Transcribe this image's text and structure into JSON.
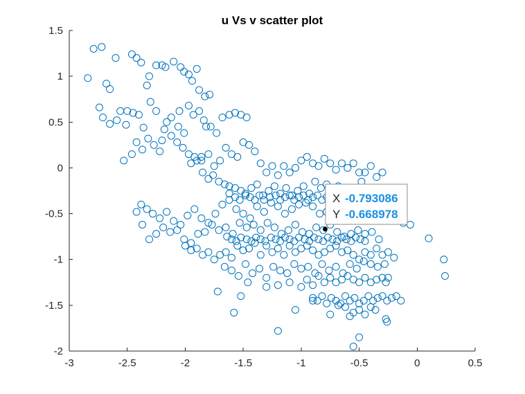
{
  "chart_data": {
    "type": "scatter",
    "title": "u Vs v scatter plot",
    "xlabel": "",
    "ylabel": "",
    "xlim": [
      -3,
      0.5
    ],
    "ylim": [
      -2,
      1.5
    ],
    "xticks": [
      -3,
      -2.5,
      -2,
      -1.5,
      -1,
      -0.5,
      0,
      0.5
    ],
    "xtick_labels": [
      "-3",
      "-2.5",
      "-2",
      "-1.5",
      "-1",
      "-0.5",
      "0",
      "0.5"
    ],
    "yticks": [
      -2,
      -1.5,
      -1,
      -0.5,
      0,
      0.5,
      1,
      1.5
    ],
    "ytick_labels": [
      "-2",
      "-1.5",
      "-1",
      "-0.5",
      "0",
      "0.5",
      "1",
      "1.5"
    ],
    "grid": false,
    "marker": "open-circle",
    "marker_color": "#0072BD",
    "datatip": {
      "x": -0.793086,
      "y": -0.668978,
      "x_label": "X",
      "y_label": "Y",
      "x_text": "-0.793086",
      "y_text": "-0.668978",
      "value_color": "#1a8fe3"
    },
    "series": [
      {
        "x": [
          -2.84,
          -2.79,
          -2.72,
          -2.68,
          -2.65,
          -2.6,
          -2.56,
          -2.51,
          -2.46,
          -2.42,
          -2.38,
          -2.33,
          -2.31,
          -2.25,
          -2.2,
          -2.17,
          -2.1,
          -2.04,
          -2.01,
          -1.97,
          -1.9,
          -2.74,
          -2.71,
          -2.65,
          -2.59,
          -2.53,
          -2.5,
          -2.45,
          -2.4,
          -2.36,
          -2.3,
          -2.25,
          -2.2,
          -2.16,
          -2.12,
          -2.06,
          -2.01,
          -1.94,
          -1.88,
          -1.83,
          -1.79,
          -2.46,
          -2.42,
          -2.37,
          -2.32,
          -2.27,
          -2.22,
          -2.18,
          -2.12,
          -2.07,
          -2.02,
          -1.97,
          -1.92,
          -1.86,
          -1.82,
          -2.05,
          -1.97,
          -1.93,
          -1.88,
          -1.84,
          -1.78,
          -1.73,
          -1.68,
          -1.62,
          -1.57,
          -1.52,
          -1.47,
          -1.95,
          -1.9,
          -1.86,
          -1.8,
          -1.75,
          -1.7,
          -1.65,
          -1.6,
          -1.55,
          -1.5,
          -1.45,
          -1.4,
          -1.35,
          -1.3,
          -1.25,
          -1.2,
          -1.15,
          -1.1,
          -1.05,
          -1.0,
          -0.95,
          -0.9,
          -0.85,
          -0.8,
          -0.75,
          -0.7,
          -0.65,
          -0.6,
          -0.55,
          -0.5,
          -0.45,
          -0.4,
          -0.35,
          -0.3,
          -1.85,
          -1.8,
          -1.76,
          -1.71,
          -1.66,
          -1.62,
          -1.57,
          -1.52,
          -1.48,
          -1.43,
          -1.38,
          -1.33,
          -1.28,
          -1.23,
          -1.18,
          -1.13,
          -1.08,
          -1.03,
          -0.98,
          -0.93,
          -0.88,
          -0.83,
          -0.78,
          -0.73,
          -0.68,
          -0.63,
          -0.58,
          -0.53,
          -0.48,
          -0.43,
          -2.38,
          -2.33,
          -2.28,
          -2.22,
          -2.16,
          -2.1,
          -2.04,
          -1.98,
          -1.92,
          -1.86,
          -1.8,
          -1.74,
          -1.68,
          -1.62,
          -1.56,
          -1.5,
          -1.44,
          -1.38,
          -1.32,
          -1.26,
          -1.2,
          -1.14,
          -1.08,
          -1.02,
          -0.96,
          -0.9,
          -0.84,
          -0.78,
          -0.72,
          -0.66,
          -0.6,
          -0.54,
          -0.48,
          -0.42,
          -0.36,
          -0.3,
          -0.24,
          -0.18,
          -0.12,
          -0.06,
          -2.42,
          -2.37,
          -2.31,
          -2.25,
          -2.19,
          -2.13,
          -2.07,
          -2.01,
          -1.95,
          -1.89,
          -1.83,
          -1.77,
          -1.71,
          -1.65,
          -1.59,
          -1.53,
          -1.47,
          -1.41,
          -1.35,
          -1.29,
          -1.23,
          -1.17,
          -1.11,
          -1.05,
          -0.99,
          -0.93,
          -0.87,
          -0.81,
          -0.75,
          -0.69,
          -0.63,
          -0.57,
          -0.51,
          -0.45,
          -0.39,
          -0.33,
          -2.0,
          -1.95,
          -1.9,
          -1.85,
          -1.8,
          -1.75,
          -1.7,
          -1.65,
          -1.6,
          -1.55,
          -1.5,
          -1.45,
          -1.4,
          -1.35,
          -1.3,
          -1.25,
          -1.2,
          -1.15,
          -1.1,
          -1.05,
          -1.0,
          -0.95,
          -0.9,
          -0.85,
          -0.8,
          -0.75,
          -0.7,
          -0.65,
          -0.6,
          -0.55,
          -0.5,
          -0.45,
          -0.4,
          -0.35,
          -0.3,
          -0.25,
          -0.2,
          0.1,
          0.23,
          -1.72,
          -1.66,
          -1.6,
          -1.54,
          -1.48,
          -1.42,
          -1.36,
          -1.3,
          -1.24,
          -1.18,
          -1.12,
          -1.06,
          -1.0,
          -0.94,
          -0.88,
          -0.82,
          -0.76,
          -0.7,
          -0.64,
          -0.58,
          -0.52,
          -0.46,
          -0.4,
          -0.34,
          -0.28,
          -1.58,
          -1.52,
          -1.46,
          -1.3,
          -1.2,
          -1.1,
          -1.0,
          -0.95,
          -0.9,
          -0.85,
          -0.8,
          -0.75,
          -0.7,
          -0.65,
          -0.6,
          -0.55,
          -0.5,
          -0.45,
          -0.4,
          -0.35,
          -0.3,
          -0.27,
          -0.25,
          -1.2,
          -1.05,
          -0.9,
          -0.75,
          -0.68,
          -0.62,
          -0.58,
          -0.55,
          -0.5,
          -0.45,
          -0.4,
          -0.36,
          -0.27,
          -0.26,
          -0.9,
          -0.86,
          -0.82,
          -0.78,
          -0.74,
          -0.7,
          -0.66,
          -0.62,
          -0.58,
          -0.54,
          -0.5,
          -0.46,
          -0.42,
          -0.38,
          -0.34,
          -0.3,
          -0.26,
          -0.22,
          -0.18,
          -0.14,
          0.24,
          -1.62,
          -1.57,
          -1.53,
          -1.48,
          -1.44,
          -1.4,
          -1.36,
          -1.32,
          -1.27,
          -1.22,
          -1.18,
          -1.14,
          -1.1,
          -1.06,
          -1.02,
          -0.98,
          -0.94,
          -0.9,
          -0.86,
          -0.82,
          -0.78,
          -0.74,
          -0.7,
          -0.66,
          -0.62,
          -0.58,
          -0.54,
          -0.5,
          -0.46,
          -0.42,
          -1.64,
          -1.6,
          -1.56,
          -1.52,
          -1.47,
          -1.43,
          -1.39,
          -1.35,
          -1.31,
          -1.26,
          -1.22,
          -1.18,
          -1.14,
          -1.1,
          -1.06,
          -1.02,
          -0.97,
          -0.93,
          -0.89,
          -0.85,
          -0.81,
          -0.77,
          -0.73,
          -0.69,
          -0.65,
          -0.61,
          -0.57,
          -0.53,
          -0.49,
          -0.45,
          -0.55,
          -0.5
        ],
        "y": [
          0.98,
          1.3,
          1.32,
          0.92,
          0.86,
          1.2,
          0.62,
          0.47,
          1.24,
          1.2,
          1.15,
          0.9,
          1.0,
          1.12,
          1.12,
          1.1,
          1.16,
          1.1,
          1.05,
          1.02,
          1.08,
          0.66,
          0.55,
          0.48,
          0.52,
          0.08,
          0.62,
          0.6,
          0.58,
          0.44,
          0.72,
          0.62,
          0.3,
          0.5,
          0.55,
          0.45,
          0.38,
          0.95,
          0.85,
          0.78,
          0.8,
          0.15,
          0.28,
          0.2,
          0.32,
          0.25,
          0.18,
          0.42,
          0.35,
          0.28,
          0.22,
          0.15,
          0.12,
          0.08,
          0.45,
          0.62,
          0.68,
          0.58,
          0.62,
          0.52,
          0.45,
          0.38,
          0.55,
          0.58,
          0.6,
          0.58,
          0.55,
          0.05,
          0.08,
          0.12,
          0.15,
          0.02,
          0.08,
          0.22,
          0.15,
          0.12,
          0.28,
          0.25,
          0.18,
          0.05,
          -0.05,
          0.02,
          -0.08,
          0.02,
          -0.05,
          0.0,
          0.08,
          0.12,
          0.05,
          0.02,
          0.1,
          0.05,
          -0.02,
          0.05,
          0.0,
          0.05,
          -0.05,
          -0.05,
          0.02,
          -0.1,
          -0.05,
          -0.05,
          -0.12,
          -0.08,
          -0.15,
          -0.18,
          -0.2,
          -0.22,
          -0.25,
          -0.28,
          -0.22,
          -0.18,
          -0.3,
          -0.25,
          -0.2,
          -0.28,
          -0.22,
          -0.3,
          -0.25,
          -0.2,
          -0.28,
          -0.15,
          -0.22,
          -0.18,
          -0.25,
          -0.2,
          -0.28,
          -0.3,
          -0.22,
          -0.15,
          -0.25,
          -0.4,
          -0.45,
          -0.5,
          -0.55,
          -0.48,
          -0.58,
          -0.62,
          -0.52,
          -0.45,
          -0.55,
          -0.6,
          -0.5,
          -0.4,
          -0.35,
          -0.45,
          -0.5,
          -0.55,
          -0.42,
          -0.48,
          -0.38,
          -0.42,
          -0.5,
          -0.45,
          -0.4,
          -0.38,
          -0.42,
          -0.5,
          -0.48,
          -0.45,
          -0.4,
          -0.55,
          -0.5,
          -0.42,
          -0.48,
          -0.52,
          -0.45,
          -0.55,
          -0.52,
          -0.6,
          -0.62,
          -0.48,
          -0.62,
          -0.78,
          -0.72,
          -0.65,
          -0.7,
          -0.68,
          -0.78,
          -0.82,
          -0.72,
          -0.7,
          -0.62,
          -0.68,
          -0.65,
          -0.72,
          -0.6,
          -0.65,
          -0.62,
          -0.68,
          -0.6,
          -0.65,
          -0.72,
          -0.68,
          -0.62,
          -0.7,
          -0.72,
          -0.65,
          -0.68,
          -0.62,
          -0.7,
          -0.75,
          -0.72,
          -0.68,
          -0.72,
          -0.7,
          -0.78,
          -0.85,
          -0.9,
          -0.88,
          -0.95,
          -0.92,
          -1.0,
          -0.95,
          -0.92,
          -0.98,
          -0.85,
          -0.9,
          -0.88,
          -0.82,
          -0.95,
          -0.85,
          -0.92,
          -0.88,
          -0.95,
          -0.85,
          -0.92,
          -0.88,
          -0.85,
          -0.9,
          -0.95,
          -0.92,
          -0.88,
          -0.85,
          -0.92,
          -0.9,
          -0.95,
          -1.0,
          -0.92,
          -0.95,
          -0.88,
          -0.95,
          -0.92,
          -0.98,
          -0.77,
          -1.0,
          -1.35,
          -1.08,
          -1.12,
          -1.18,
          -1.05,
          -1.15,
          -1.1,
          -1.2,
          -1.08,
          -1.12,
          -1.15,
          -1.05,
          -1.1,
          -1.08,
          -1.15,
          -1.05,
          -1.12,
          -1.08,
          -1.15,
          -1.05,
          -1.1,
          -1.02,
          -1.05,
          -1.08,
          -1.05,
          -1.58,
          -1.4,
          -1.25,
          -1.3,
          -1.28,
          -1.25,
          -1.3,
          -1.22,
          -1.28,
          -1.18,
          -1.25,
          -1.2,
          -1.25,
          -1.22,
          -1.18,
          -1.22,
          -1.25,
          -1.2,
          -1.25,
          -1.22,
          -1.2,
          -1.25,
          -1.2,
          -1.78,
          -1.55,
          -1.45,
          -1.6,
          -1.5,
          -1.52,
          -1.62,
          -1.58,
          -1.55,
          -1.6,
          -1.52,
          -1.55,
          -1.65,
          -1.68,
          -1.42,
          -1.45,
          -1.4,
          -1.48,
          -1.42,
          -1.45,
          -1.48,
          -1.4,
          -1.45,
          -1.42,
          -1.48,
          -1.45,
          -1.4,
          -1.45,
          -1.42,
          -1.4,
          -1.45,
          -1.42,
          -1.4,
          -1.45,
          -1.18,
          -0.28,
          -0.32,
          -0.35,
          -0.3,
          -0.32,
          -0.35,
          -0.3,
          -0.35,
          -0.32,
          -0.3,
          -0.35,
          -0.32,
          -0.3,
          -0.35,
          -0.32,
          -0.3,
          -0.35,
          -0.32,
          -0.3,
          -0.35,
          -0.32,
          -0.3,
          -0.35,
          -0.32,
          -0.3,
          -0.35,
          -0.32,
          -0.3,
          -0.35,
          -0.32,
          -0.75,
          -0.78,
          -0.8,
          -0.76,
          -0.78,
          -0.8,
          -0.76,
          -0.78,
          -0.8,
          -0.76,
          -0.78,
          -0.8,
          -0.76,
          -0.78,
          -0.8,
          -0.76,
          -0.78,
          -0.8,
          -0.76,
          -0.78,
          -0.8,
          -0.76,
          -0.78,
          -0.8,
          -0.76,
          -0.78,
          -0.8,
          -0.76,
          -0.78,
          -0.8,
          -1.95,
          -1.85
        ]
      }
    ]
  }
}
